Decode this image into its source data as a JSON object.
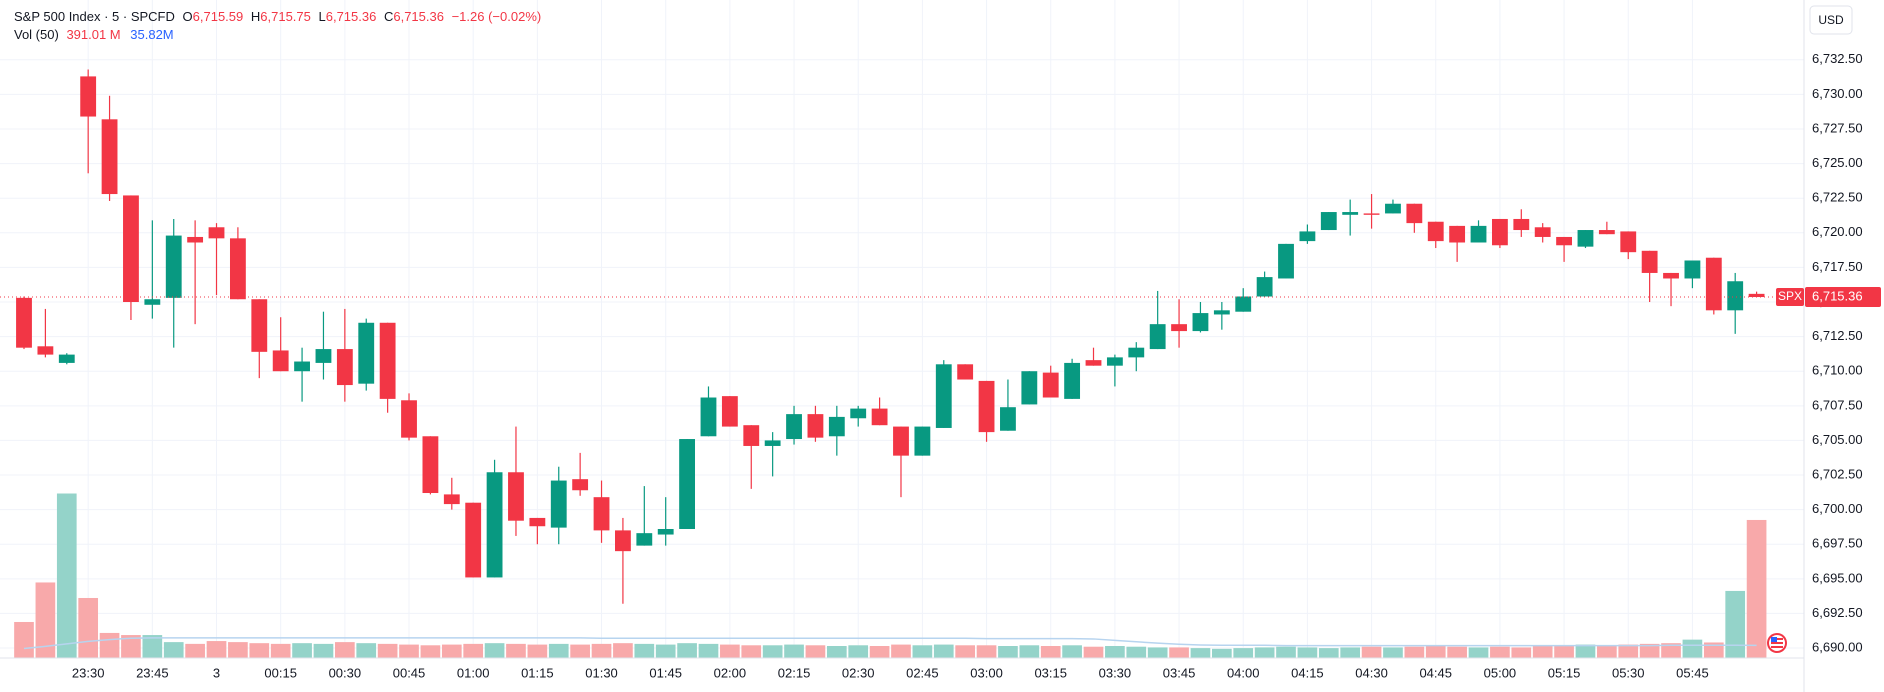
{
  "chart_data": {
    "type": "candlestick",
    "title": "S&P 500 Index · 5 · SPCFD",
    "ohlc_letters": [
      "O",
      "H",
      "L",
      "C"
    ],
    "ohlc_texts": [
      "6,715.59",
      "6,715.75",
      "6,715.36",
      "6,715.36"
    ],
    "change_text": "−1.26 (−0.02%)",
    "volume_title": "Vol (50)",
    "volume_text": "391.01 M",
    "volume_ma_text": "35.82M",
    "currency": "USD",
    "symbol": "SPX",
    "last_price": {
      "value": 6715.36,
      "label": "6,715.36"
    },
    "up_color": "#089981",
    "down_color": "#f23645",
    "volume_up_color": "#94d3c9",
    "volume_down_color": "#f8a9aa",
    "volume_ma_color": "#b7d4ef",
    "categories": [
      null,
      null,
      null,
      "23:30",
      null,
      null,
      "23:45",
      null,
      null,
      "3",
      null,
      null,
      "00:15",
      null,
      null,
      "00:30",
      null,
      null,
      "00:45",
      null,
      null,
      "01:00",
      null,
      null,
      "01:15",
      null,
      null,
      "01:30",
      null,
      null,
      "01:45",
      null,
      null,
      "02:00",
      null,
      null,
      "02:15",
      null,
      null,
      "02:30",
      null,
      null,
      "02:45",
      null,
      null,
      "03:00",
      null,
      null,
      "03:15",
      null,
      null,
      "03:30",
      null,
      null,
      "03:45",
      null,
      null,
      "04:00",
      null,
      null,
      "04:15",
      null,
      null,
      "04:30",
      null,
      null,
      "04:45",
      null,
      null,
      "05:00",
      null,
      null,
      "05:15",
      null,
      null,
      "05:30",
      null,
      null,
      "05:45",
      null,
      null,
      null
    ],
    "open": [
      6715.3,
      6711.8,
      6710.6,
      6731.3,
      6728.2,
      6722.7,
      6714.8,
      6715.3,
      6719.7,
      6720.4,
      6719.6,
      6715.2,
      6711.5,
      6710.0,
      6710.6,
      6711.6,
      6709.1,
      6713.5,
      6707.9,
      6705.3,
      6701.1,
      6700.5,
      6695.1,
      6702.7,
      6699.4,
      6698.7,
      6702.2,
      6700.9,
      6698.5,
      6697.4,
      6698.2,
      6698.6,
      6705.3,
      6708.2,
      6706.1,
      6704.6,
      6705.1,
      6706.9,
      6705.3,
      6706.6,
      6707.3,
      6706.0,
      6703.9,
      6705.9,
      6710.5,
      6709.3,
      6705.7,
      6707.6,
      6709.9,
      6708.0,
      6710.8,
      6710.4,
      6711.0,
      6711.6,
      6713.4,
      6712.9,
      6714.1,
      6714.3,
      6715.4,
      6716.7,
      6719.4,
      6720.2,
      6721.3,
      6721.4,
      6721.4,
      6722.1,
      6720.8,
      6720.5,
      6719.3,
      6721.0,
      6721.0,
      6720.4,
      6719.7,
      6719.0,
      6720.2,
      6720.1,
      6718.7,
      6717.1,
      6716.7,
      6718.2,
      6714.4,
      6715.59
    ],
    "high": [
      6715.4,
      6714.5,
      6711.3,
      6731.8,
      6729.9,
      6722.7,
      6720.9,
      6721.0,
      6720.9,
      6720.7,
      6720.4,
      6715.2,
      6713.9,
      6711.7,
      6714.3,
      6714.5,
      6713.8,
      6713.5,
      6708.4,
      6705.3,
      6702.3,
      6700.5,
      6703.6,
      6706.0,
      6699.4,
      6703.1,
      6704.1,
      6702.1,
      6699.4,
      6701.7,
      6700.9,
      6705.1,
      6708.9,
      6708.2,
      6706.1,
      6705.6,
      6707.5,
      6707.5,
      6707.5,
      6707.5,
      6708.1,
      6706.0,
      6706.0,
      6710.8,
      6710.5,
      6709.3,
      6709.4,
      6710.0,
      6710.4,
      6710.9,
      6711.7,
      6711.2,
      6712.1,
      6715.8,
      6715.2,
      6715.0,
      6715.0,
      6716.0,
      6717.2,
      6719.2,
      6720.6,
      6721.5,
      6722.4,
      6722.8,
      6722.4,
      6722.1,
      6720.8,
      6720.5,
      6720.9,
      6721.0,
      6721.7,
      6720.7,
      6719.7,
      6720.2,
      6720.8,
      6720.1,
      6718.7,
      6717.1,
      6718.0,
      6718.2,
      6717.1,
      6715.75
    ],
    "low": [
      6711.6,
      6711.0,
      6710.5,
      6724.3,
      6722.3,
      6713.7,
      6713.8,
      6711.7,
      6713.4,
      6715.5,
      6715.2,
      6709.5,
      6710.0,
      6707.8,
      6709.4,
      6707.8,
      6708.6,
      6707.0,
      6705.0,
      6701.1,
      6700.0,
      6695.1,
      6695.1,
      6698.1,
      6697.5,
      6697.5,
      6701.0,
      6697.6,
      6693.2,
      6697.4,
      6697.4,
      6698.6,
      6705.3,
      6706.0,
      6701.5,
      6702.4,
      6704.7,
      6704.9,
      6703.9,
      6706.0,
      6706.1,
      6700.9,
      6703.9,
      6705.9,
      6709.4,
      6704.9,
      6705.7,
      6707.6,
      6708.1,
      6708.0,
      6710.4,
      6708.9,
      6710.0,
      6711.6,
      6711.7,
      6712.8,
      6713.0,
      6714.3,
      6715.4,
      6716.7,
      6719.2,
      6720.2,
      6719.8,
      6720.3,
      6721.4,
      6720.0,
      6718.9,
      6717.9,
      6719.3,
      6718.9,
      6719.7,
      6719.3,
      6717.9,
      6718.9,
      6719.9,
      6718.1,
      6715.0,
      6714.7,
      6716.0,
      6714.1,
      6712.7,
      6715.36
    ],
    "close": [
      6711.7,
      6711.2,
      6711.2,
      6728.4,
      6722.8,
      6715.0,
      6715.2,
      6719.8,
      6719.3,
      6719.6,
      6715.2,
      6711.4,
      6710.0,
      6710.7,
      6711.6,
      6709.0,
      6713.5,
      6708.0,
      6705.2,
      6701.2,
      6700.4,
      6695.1,
      6702.7,
      6699.2,
      6698.8,
      6702.1,
      6701.4,
      6698.5,
      6697.0,
      6698.3,
      6698.6,
      6705.1,
      6708.1,
      6706.0,
      6704.6,
      6705.0,
      6706.9,
      6705.2,
      6706.7,
      6707.3,
      6706.1,
      6703.9,
      6706.0,
      6710.5,
      6709.4,
      6705.6,
      6707.4,
      6710.0,
      6708.1,
      6710.6,
      6710.4,
      6711.0,
      6711.7,
      6713.4,
      6712.9,
      6714.2,
      6714.4,
      6715.4,
      6716.8,
      6719.2,
      6720.1,
      6721.5,
      6721.5,
      6721.3,
      6722.1,
      6720.7,
      6719.4,
      6719.3,
      6720.5,
      6719.1,
      6720.2,
      6719.7,
      6719.1,
      6720.2,
      6719.9,
      6718.6,
      6717.1,
      6716.7,
      6718.0,
      6714.4,
      6716.5,
      6715.36
    ],
    "volume": [
      102,
      214,
      466,
      170,
      71,
      65,
      65,
      45,
      40,
      48,
      45,
      42,
      40,
      42,
      40,
      45,
      42,
      40,
      38,
      36,
      38,
      40,
      42,
      40,
      38,
      40,
      38,
      40,
      42,
      40,
      38,
      42,
      40,
      38,
      36,
      36,
      38,
      36,
      34,
      36,
      34,
      38,
      36,
      38,
      36,
      36,
      34,
      36,
      34,
      36,
      32,
      34,
      32,
      30,
      30,
      28,
      26,
      28,
      30,
      32,
      30,
      28,
      30,
      32,
      30,
      32,
      34,
      32,
      30,
      32,
      30,
      34,
      36,
      38,
      36,
      38,
      40,
      42,
      52,
      44,
      190,
      391.01
    ],
    "volume_ma": [
      27,
      33,
      40,
      47,
      52,
      56,
      57,
      57,
      57,
      57,
      57,
      57,
      57,
      57,
      57,
      57,
      57,
      57,
      57,
      57,
      57,
      57,
      57,
      57,
      57,
      57,
      57,
      56,
      56,
      56,
      56,
      56,
      56,
      56,
      56,
      56,
      56,
      56,
      56,
      56,
      56,
      56,
      56,
      56,
      56,
      55,
      55,
      55,
      55,
      55,
      54,
      50,
      46,
      42,
      39,
      37,
      36,
      36,
      36,
      35,
      35,
      35,
      35,
      35,
      35,
      35,
      35,
      35,
      35,
      35,
      35,
      35,
      35,
      35,
      35,
      35,
      35,
      36,
      36,
      36,
      36,
      35.82
    ],
    "ylim": [
      6689.28,
      6736.82
    ],
    "volume_ylim": [
      0,
      1864
    ],
    "yticks": [
      {
        "value": 6690,
        "label": "6,690.00"
      },
      {
        "value": 6692.5,
        "label": "6,692.50"
      },
      {
        "value": 6695,
        "label": "6,695.00"
      },
      {
        "value": 6697.5,
        "label": "6,697.50"
      },
      {
        "value": 6700,
        "label": "6,700.00"
      },
      {
        "value": 6702.5,
        "label": "6,702.50"
      },
      {
        "value": 6705,
        "label": "6,705.00"
      },
      {
        "value": 6707.5,
        "label": "6,707.50"
      },
      {
        "value": 6710,
        "label": "6,710.00"
      },
      {
        "value": 6712.5,
        "label": "6,712.50"
      },
      {
        "value": 6715,
        "label": "6,715.00"
      },
      {
        "value": 6717.5,
        "label": "6,717.50"
      },
      {
        "value": 6720,
        "label": "6,720.00"
      },
      {
        "value": 6722.5,
        "label": "6,722.50"
      },
      {
        "value": 6725,
        "label": "6,725.00"
      },
      {
        "value": 6727.5,
        "label": "6,727.50"
      },
      {
        "value": 6730,
        "label": "6,730.00"
      },
      {
        "value": 6732.5,
        "label": "6,732.50"
      }
    ],
    "grid": true
  }
}
